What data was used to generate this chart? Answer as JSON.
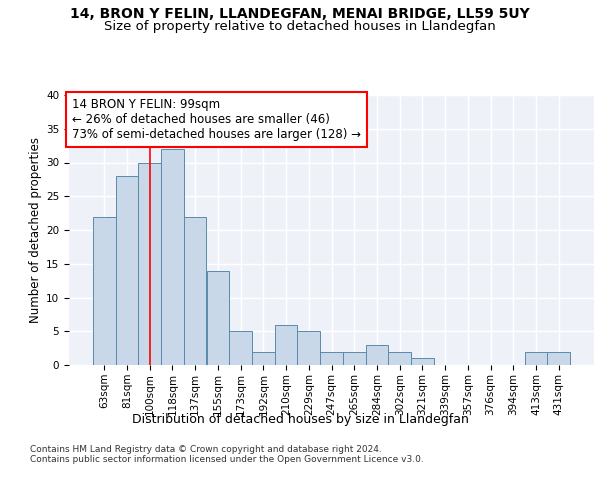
{
  "title1": "14, BRON Y FELIN, LLANDEGFAN, MENAI BRIDGE, LL59 5UY",
  "title2": "Size of property relative to detached houses in Llandegfan",
  "xlabel": "Distribution of detached houses by size in Llandegfan",
  "ylabel": "Number of detached properties",
  "categories": [
    "63sqm",
    "81sqm",
    "100sqm",
    "118sqm",
    "137sqm",
    "155sqm",
    "173sqm",
    "192sqm",
    "210sqm",
    "229sqm",
    "247sqm",
    "265sqm",
    "284sqm",
    "302sqm",
    "321sqm",
    "339sqm",
    "357sqm",
    "376sqm",
    "394sqm",
    "413sqm",
    "431sqm"
  ],
  "values": [
    22,
    28,
    30,
    32,
    22,
    14,
    5,
    2,
    6,
    5,
    2,
    2,
    3,
    2,
    1,
    0,
    0,
    0,
    0,
    2,
    2
  ],
  "bar_color": "#c8d8e8",
  "bar_edge_color": "#5a8aaa",
  "background_color": "#eef2f8",
  "grid_color": "#ffffff",
  "annotation_text": "14 BRON Y FELIN: 99sqm\n← 26% of detached houses are smaller (46)\n73% of semi-detached houses are larger (128) →",
  "annotation_box_color": "white",
  "annotation_box_edge_color": "red",
  "vline_color": "red",
  "vline_x": 2.5,
  "ylim": [
    0,
    40
  ],
  "yticks": [
    0,
    5,
    10,
    15,
    20,
    25,
    30,
    35,
    40
  ],
  "footer": "Contains HM Land Registry data © Crown copyright and database right 2024.\nContains public sector information licensed under the Open Government Licence v3.0.",
  "title_fontsize": 10,
  "subtitle_fontsize": 9.5,
  "xlabel_fontsize": 9,
  "ylabel_fontsize": 8.5,
  "tick_fontsize": 7.5,
  "annotation_fontsize": 8.5,
  "footer_fontsize": 6.5
}
